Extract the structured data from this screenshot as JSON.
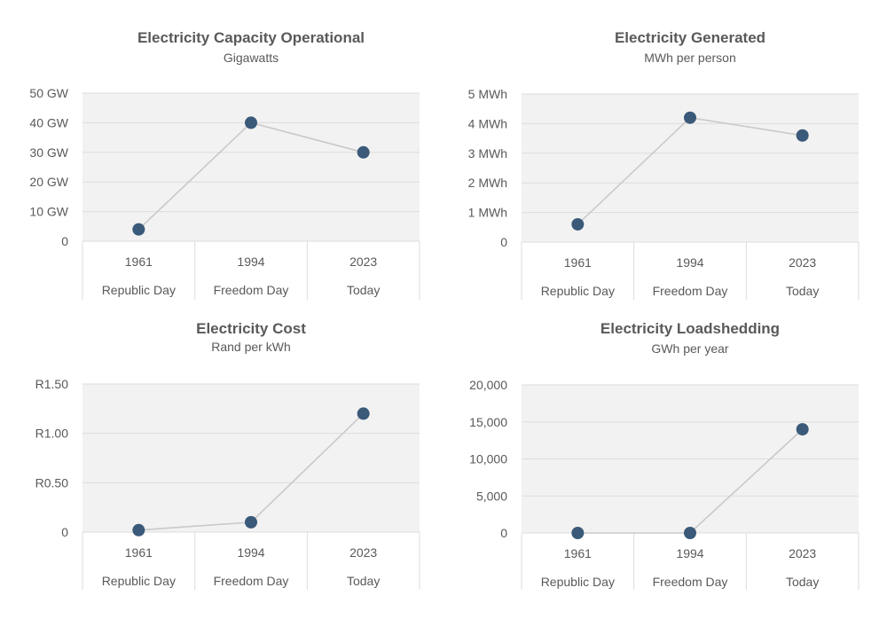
{
  "colors": {
    "marker": "#3b5a7a",
    "line": "#c9c9c9",
    "plot_bg": "#f2f2f2",
    "grid": "#dcdcdc",
    "text": "#595959"
  },
  "chart_data": [
    {
      "type": "line",
      "title": "Electricity  Capacity Operational",
      "subtitle": "Gigawatts",
      "categories": [
        "1961",
        "1994",
        "2023"
      ],
      "category_labels": [
        "Republic Day",
        "Freedom Day",
        "Today"
      ],
      "values": [
        4,
        40,
        30
      ],
      "ylim": [
        0,
        50
      ],
      "yticks": [
        0,
        10,
        20,
        30,
        40,
        50
      ],
      "ytick_labels": [
        "0",
        "10 GW",
        "20 GW",
        "30 GW",
        "40 GW",
        "50 GW"
      ],
      "grid": true,
      "legend": "none"
    },
    {
      "type": "line",
      "title": "Electricity Generated",
      "subtitle": "MWh per person",
      "categories": [
        "1961",
        "1994",
        "2023"
      ],
      "category_labels": [
        "Republic Day",
        "Freedom Day",
        "Today"
      ],
      "values": [
        0.6,
        4.2,
        3.6
      ],
      "ylim": [
        0,
        5
      ],
      "yticks": [
        0,
        1,
        2,
        3,
        4,
        5
      ],
      "ytick_labels": [
        "0",
        "1 MWh",
        "2 MWh",
        "3 MWh",
        "4 MWh",
        "5 MWh"
      ],
      "grid": true,
      "legend": "none"
    },
    {
      "type": "line",
      "title": "Electricity Cost",
      "subtitle": "Rand per kWh",
      "categories": [
        "1961",
        "1994",
        "2023"
      ],
      "category_labels": [
        "Republic Day",
        "Freedom Day",
        "Today"
      ],
      "values": [
        0.02,
        0.1,
        1.2
      ],
      "ylim": [
        0,
        1.5
      ],
      "yticks": [
        0,
        0.5,
        1.0,
        1.5
      ],
      "ytick_labels": [
        "0",
        "R0.50",
        "R1.00",
        "R1.50"
      ],
      "grid": true,
      "legend": "none"
    },
    {
      "type": "line",
      "title": "Electricity Loadshedding",
      "subtitle": "GWh per year",
      "categories": [
        "1961",
        "1994",
        "2023"
      ],
      "category_labels": [
        "Republic Day",
        "Freedom Day",
        "Today"
      ],
      "values": [
        0,
        0,
        14000
      ],
      "ylim": [
        0,
        20000
      ],
      "yticks": [
        0,
        5000,
        10000,
        15000,
        20000
      ],
      "ytick_labels": [
        "0",
        "5,000",
        "10,000",
        "15,000",
        "20,000"
      ],
      "grid": true,
      "legend": "none"
    }
  ]
}
